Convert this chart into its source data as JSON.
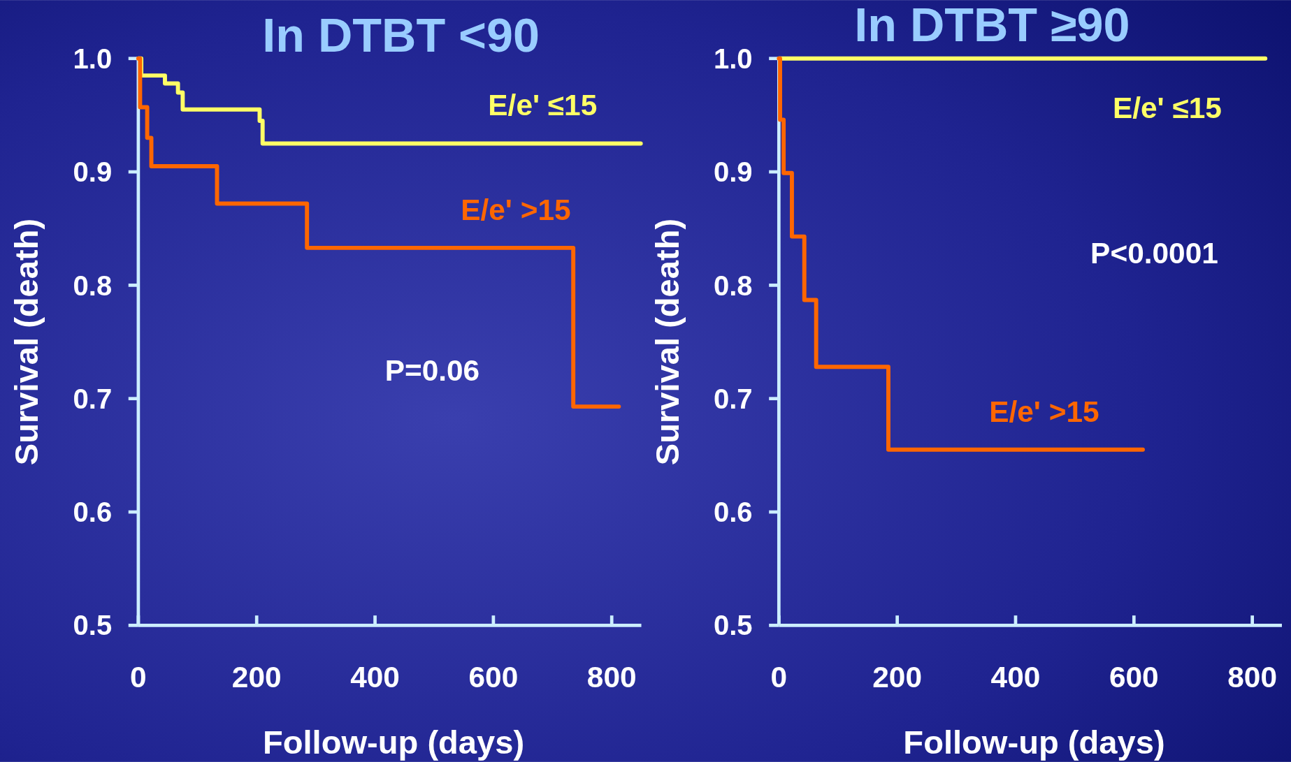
{
  "chart_data": [
    {
      "type": "step",
      "title": "In DTBT <90",
      "xlabel": "Follow-up (days)",
      "ylabel": "Survival (death)",
      "xlim": [
        0,
        850
      ],
      "xticks": [
        0,
        200,
        400,
        600,
        800
      ],
      "ylim": [
        0.5,
        1.0
      ],
      "yticks": [
        0.5,
        0.6,
        0.7,
        0.8,
        0.9,
        {
          "value": 1.0,
          "label": "1.0"
        }
      ],
      "annotations": [
        "P=0.06"
      ],
      "series": [
        {
          "name": "E/e' ≤15",
          "color": "#ffff66",
          "x": [
            0,
            5,
            45,
            67,
            75,
            205,
            210,
            849
          ],
          "values": [
            1.0,
            0.985,
            0.978,
            0.97,
            0.955,
            0.945,
            0.925,
            0.925
          ]
        },
        {
          "name": "E/e' >15",
          "color": "#ff6600",
          "x": [
            0,
            3,
            15,
            22,
            133,
            285,
            735,
            812
          ],
          "values": [
            1.0,
            0.957,
            0.93,
            0.905,
            0.872,
            0.833,
            0.693,
            0.693
          ]
        }
      ]
    },
    {
      "type": "step",
      "title": "In DTBT ≥90",
      "xlabel": "Follow-up (days)",
      "ylabel": "Survival (death)",
      "xlim": [
        0,
        850
      ],
      "xticks": [
        0,
        200,
        400,
        600,
        800
      ],
      "ylim": [
        0.5,
        1.0
      ],
      "yticks": [
        0.5,
        0.6,
        0.7,
        0.8,
        0.9,
        {
          "value": 1.0,
          "label": "1.0"
        }
      ],
      "annotations": [
        "P<0.0001"
      ],
      "series": [
        {
          "name": "E/e' ≤15",
          "color": "#ffff66",
          "x": [
            0,
            822
          ],
          "values": [
            1.0,
            1.0
          ]
        },
        {
          "name": "E/e' >15",
          "color": "#ff6600",
          "x": [
            0,
            2,
            8,
            22,
            43,
            63,
            185,
            615
          ],
          "values": [
            1.0,
            0.946,
            0.899,
            0.843,
            0.787,
            0.728,
            0.655,
            0.655
          ]
        }
      ]
    }
  ]
}
